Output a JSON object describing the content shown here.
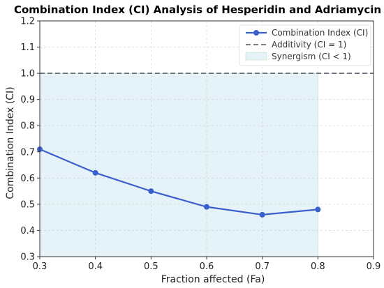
{
  "chart_data": {
    "type": "line",
    "title": "Combination Index (CI) Analysis of Hesperidin and Adriamycin",
    "xlabel": "Fraction affected (Fa)",
    "ylabel": "Combination Index (CI)",
    "xlim": [
      0.3,
      0.9
    ],
    "ylim": [
      0.3,
      1.2
    ],
    "x_ticks": [
      "0.3",
      "0.4",
      "0.5",
      "0.6",
      "0.7",
      "0.8",
      "0.9"
    ],
    "y_ticks": [
      "0.3",
      "0.4",
      "0.5",
      "0.6",
      "0.7",
      "0.8",
      "0.9",
      "1.0",
      "1.1",
      "1.2"
    ],
    "grid": true,
    "legend_position": "top-right",
    "series": [
      {
        "name": "Combination Index (CI)",
        "x": [
          0.3,
          0.4,
          0.5,
          0.6,
          0.7,
          0.8
        ],
        "y": [
          0.71,
          0.62,
          0.55,
          0.49,
          0.46,
          0.48
        ],
        "color": "#3a5fcd"
      }
    ],
    "reference_line": {
      "name": "Additivity (CI = 1)",
      "y": 1.0,
      "color": "#666e78"
    },
    "shaded_region": {
      "name": "Synergism (CI < 1)",
      "x": [
        0.3,
        0.8
      ],
      "y": [
        0.3,
        1.0
      ],
      "color": "#add8e6"
    },
    "legend": [
      "Combination Index (CI)",
      "Additivity (CI = 1)",
      "Synergism (CI < 1)"
    ]
  }
}
